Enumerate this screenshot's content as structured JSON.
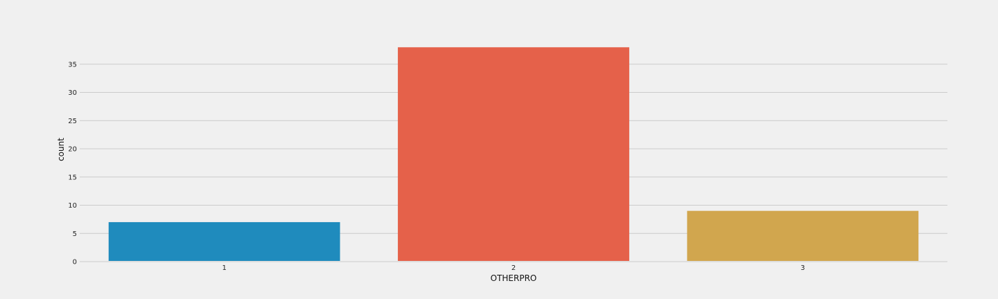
{
  "chart_data": {
    "type": "bar",
    "categories": [
      "1",
      "2",
      "3"
    ],
    "values": [
      7,
      38,
      9
    ],
    "colors": [
      "#1f8bbd",
      "#e5614a",
      "#d1a64e"
    ],
    "title": "",
    "xlabel": "OTHERPRO",
    "ylabel": "count",
    "ylim": [
      0,
      40
    ],
    "yticks": [
      0,
      5,
      10,
      15,
      20,
      25,
      30,
      35
    ],
    "grid": "horizontal",
    "background": "#f0f0f0"
  }
}
